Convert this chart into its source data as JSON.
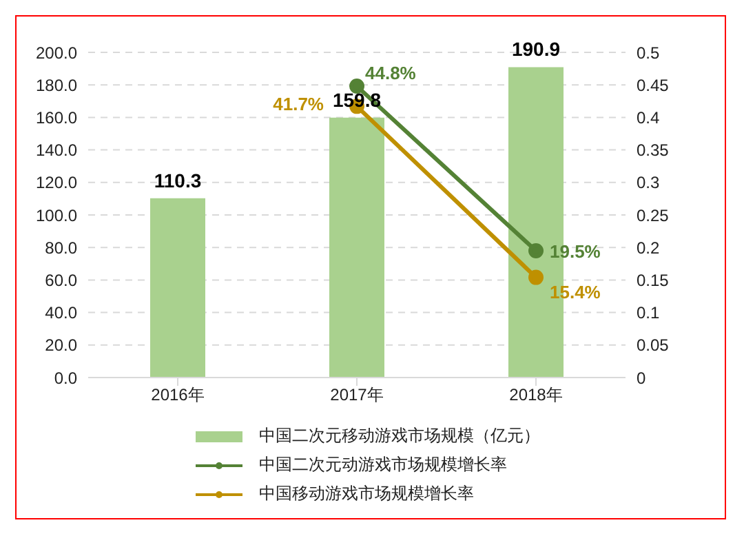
{
  "chart_data": {
    "type": "bar",
    "categories": [
      "2016年",
      "2017年",
      "2018年"
    ],
    "series": [
      {
        "name": "中国二次元移动游戏市场规模（亿元）",
        "color": "#a9d18e",
        "values": [
          110.3,
          159.8,
          190.9
        ],
        "value_labels": [
          "110.3",
          "159.8",
          "190.9"
        ]
      },
      {
        "name": "中国二次元动游戏市场规模增长率",
        "type": "line",
        "axis": "y2",
        "color": "#548235",
        "values": [
          null,
          0.448,
          0.195
        ],
        "value_labels": [
          null,
          "44.8%",
          "19.5%"
        ]
      },
      {
        "name": "中国移动游戏市场规模增长率",
        "type": "line",
        "axis": "y2",
        "color": "#bf9000",
        "values": [
          null,
          0.417,
          0.154
        ],
        "value_labels": [
          null,
          "41.7%",
          "15.4%"
        ]
      }
    ],
    "ylim": [
      0,
      200
    ],
    "yticks": [
      {
        "value": 0,
        "label": "0.0"
      },
      {
        "value": 20,
        "label": "20.0"
      },
      {
        "value": 40,
        "label": "40.0"
      },
      {
        "value": 60,
        "label": "60.0"
      },
      {
        "value": 80,
        "label": "80.0"
      },
      {
        "value": 100,
        "label": "100.0"
      },
      {
        "value": 120,
        "label": "120.0"
      },
      {
        "value": 140,
        "label": "140.0"
      },
      {
        "value": 160,
        "label": "160.0"
      },
      {
        "value": 180,
        "label": "180.0"
      },
      {
        "value": 200,
        "label": "200.0"
      }
    ],
    "y2lim": [
      0,
      0.5
    ],
    "y2ticks": [
      0,
      0.05,
      0.1,
      0.15,
      0.2,
      0.25,
      0.3,
      0.35,
      0.4,
      0.45,
      0.5
    ],
    "grid": "y",
    "legend": "bottom",
    "marker": "circle"
  }
}
